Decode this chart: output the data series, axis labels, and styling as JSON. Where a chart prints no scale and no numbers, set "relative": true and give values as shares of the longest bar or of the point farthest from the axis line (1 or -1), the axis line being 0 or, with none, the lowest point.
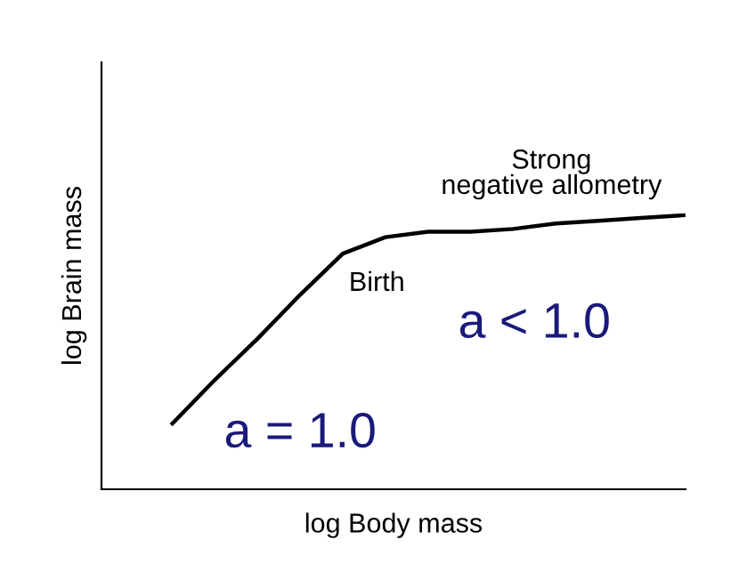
{
  "chart_data": {
    "type": "line",
    "relative": true,
    "xlabel": "log Body mass",
    "ylabel": "log Brain mass",
    "categories": [
      null,
      null,
      null,
      null,
      null,
      null,
      null,
      null,
      null,
      null,
      null,
      null,
      null
    ],
    "series": [
      {
        "color": "#000000",
        "values": [
          0.24,
          0.4,
          0.55,
          0.71,
          0.86,
          0.92,
          0.94,
          0.94,
          0.95,
          0.97,
          0.98,
          0.99,
          1.0
        ]
      }
    ],
    "annotations": [
      "Strong\nnegative allometry",
      "Birth",
      "a < 1.0",
      "a = 1.0"
    ],
    "grid": false,
    "legend": false,
    "marker": "none",
    "line_style": "solid"
  }
}
